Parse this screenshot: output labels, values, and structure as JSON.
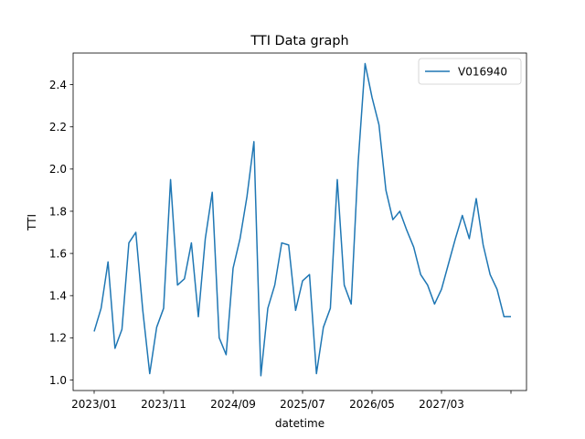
{
  "chart_data": {
    "type": "line",
    "title": "TTI Data graph",
    "xlabel": "datetime",
    "ylabel": "TTI",
    "x_tick_labels": [
      "2023/01",
      "2023/11",
      "2024/09",
      "2025/07",
      "2026/05",
      "2027/03"
    ],
    "y_ticks": [
      1.0,
      1.2,
      1.4,
      1.6,
      1.8,
      2.0,
      2.2,
      2.4
    ],
    "y_tick_labels": [
      "1.0",
      "1.2",
      "1.4",
      "1.6",
      "1.8",
      "2.0",
      "2.2",
      "2.4"
    ],
    "ylim": [
      0.95,
      2.55
    ],
    "grid": false,
    "legend_position": "top-right",
    "series": [
      {
        "name": "V016940",
        "color": "#1f77b4",
        "x": [
          "2023-01",
          "2023-02",
          "2023-03",
          "2023-04",
          "2023-05",
          "2023-06",
          "2023-07",
          "2023-08",
          "2023-09",
          "2023-10",
          "2023-11",
          "2023-12",
          "2024-01",
          "2024-02",
          "2024-03",
          "2024-04",
          "2024-05",
          "2024-06",
          "2024-07",
          "2024-08",
          "2024-09",
          "2024-10",
          "2024-11",
          "2024-12",
          "2025-01",
          "2025-02",
          "2025-03",
          "2025-04",
          "2025-05",
          "2025-06",
          "2025-07",
          "2025-08",
          "2025-09",
          "2025-10",
          "2025-11",
          "2025-12",
          "2026-01",
          "2026-02",
          "2026-03",
          "2026-04",
          "2026-05",
          "2026-06",
          "2026-07",
          "2026-08",
          "2026-09",
          "2026-10",
          "2026-11",
          "2026-12",
          "2027-01",
          "2027-02",
          "2027-03",
          "2027-04",
          "2027-05",
          "2027-06",
          "2027-07",
          "2027-08",
          "2027-09",
          "2027-10",
          "2027-11",
          "2027-12",
          "2028-01"
        ],
        "y": [
          1.23,
          1.34,
          1.56,
          1.15,
          1.24,
          1.65,
          1.7,
          1.33,
          1.03,
          1.25,
          1.34,
          1.95,
          1.45,
          1.48,
          1.65,
          1.3,
          1.67,
          1.89,
          1.2,
          1.12,
          1.53,
          1.67,
          1.87,
          2.13,
          1.02,
          1.34,
          1.45,
          1.65,
          1.64,
          1.33,
          1.47,
          1.5,
          1.03,
          1.25,
          1.34,
          1.95,
          1.45,
          1.36,
          2.03,
          2.5,
          2.34,
          2.21,
          1.9,
          1.76,
          1.8,
          1.71,
          1.63,
          1.5,
          1.45,
          1.36,
          1.43,
          1.55,
          1.67,
          1.78,
          1.67,
          1.86,
          1.64,
          1.5,
          1.43,
          1.3,
          1.3
        ]
      }
    ]
  }
}
